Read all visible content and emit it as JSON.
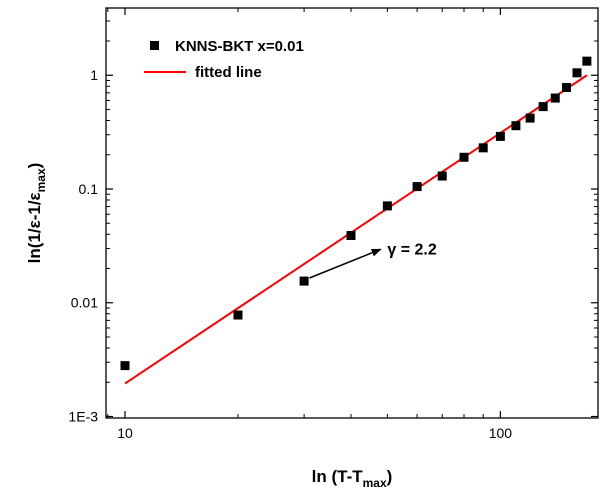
{
  "chart_data": {
    "type": "scatter",
    "x_scale": "log",
    "y_scale": "log",
    "xlim": [
      8.9,
      182
    ],
    "ylim": [
      0.00097,
      3.9
    ],
    "x_ticks": [
      {
        "value": 10,
        "label": "10"
      },
      {
        "value": 100,
        "label": "100"
      }
    ],
    "y_ticks": [
      {
        "value": 0.001,
        "label": "1E-3"
      },
      {
        "value": 0.01,
        "label": "0.01"
      },
      {
        "value": 0.1,
        "label": "0.1"
      },
      {
        "value": 1,
        "label": "1"
      }
    ],
    "grid": false,
    "legend_position": "top-left",
    "xlabel": {
      "main": "ln (T-T",
      "sub": "max",
      "tail": ")"
    },
    "ylabel": {
      "parts": [
        {
          "text": "ln(1/ε-1/ε",
          "sub": false
        },
        {
          "text": "max",
          "sub": true
        },
        {
          "text": ")",
          "sub": false
        }
      ]
    },
    "series": [
      {
        "name": "KNNS-BKT x=0.01",
        "kind": "scatter",
        "marker": "square",
        "color": "#000000",
        "x": [
          10,
          20,
          30,
          40,
          50,
          60,
          70,
          80,
          90,
          100,
          110,
          120,
          130,
          140,
          150,
          160,
          170
        ],
        "y": [
          0.0028,
          0.0078,
          0.0155,
          0.039,
          0.071,
          0.105,
          0.13,
          0.19,
          0.23,
          0.29,
          0.36,
          0.42,
          0.53,
          0.63,
          0.78,
          1.05,
          1.33
        ]
      },
      {
        "name": "fitted line",
        "kind": "line",
        "color": "#ff0000",
        "x": [
          10,
          170
        ],
        "y": [
          0.00195,
          1.0
        ]
      }
    ],
    "annotation": {
      "text": "γ = 2.2",
      "arrow_from": [
        31,
        0.0165
      ],
      "arrow_to": [
        48,
        0.0295
      ],
      "text_at": [
        50,
        0.03
      ]
    }
  }
}
